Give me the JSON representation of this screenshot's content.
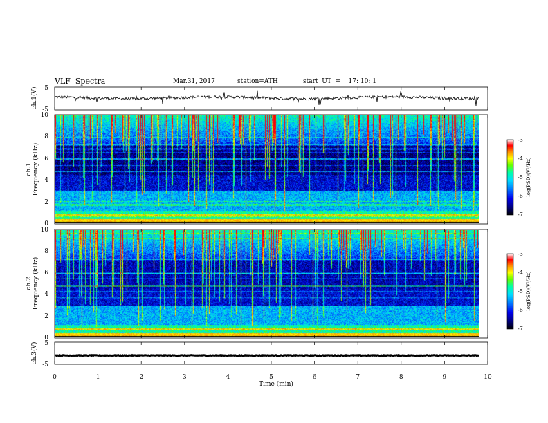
{
  "header": {
    "title": "VLF  Spectra",
    "date": "Mar.31, 2017",
    "station": "station=ATH",
    "start_ut": "start  UT  =    17: 10: 1"
  },
  "colors": {
    "colormap": [
      "#000000",
      "#000066",
      "#0000dd",
      "#0066ff",
      "#00ccff",
      "#00ffaa",
      "#55ff00",
      "#ffff00",
      "#ff8800",
      "#ff0000",
      "#ffffff"
    ]
  },
  "chart_data": [
    {
      "type": "line",
      "panel": "ch1-waveform",
      "ylabel": "ch.1(V)",
      "ylim": [
        -5,
        5
      ],
      "yticks": [
        "5",
        "-5"
      ],
      "xlim": [
        0,
        10
      ],
      "trace": "noisy baseline near 0 V with occasional spikes",
      "mean": 0.3
    },
    {
      "type": "heatmap",
      "panel": "ch1-spectrogram",
      "ylabel": "ch.1\nFrequency (kHz)",
      "ylim": [
        0,
        10
      ],
      "yticks": [
        "0",
        "2",
        "4",
        "6",
        "8",
        "10"
      ],
      "xlim": [
        0,
        9.8
      ],
      "colorbar": {
        "label": "log(PSD)(V²/Hz)",
        "range": [
          -7,
          -3
        ],
        "ticks": [
          "-3",
          "-4",
          "-5",
          "-6",
          "-7"
        ]
      }
    },
    {
      "type": "heatmap",
      "panel": "ch2-spectrogram",
      "ylabel": "ch.2\nFrequency (kHz)",
      "ylim": [
        0,
        10
      ],
      "yticks": [
        "0",
        "2",
        "4",
        "6",
        "8",
        "10"
      ],
      "xlim": [
        0,
        9.8
      ],
      "colorbar": {
        "label": "log(PSD)(V²/Hz)",
        "range": [
          -7,
          -3
        ],
        "ticks": [
          "-3",
          "-4",
          "-5",
          "-6",
          "-7"
        ]
      }
    },
    {
      "type": "line",
      "panel": "ch3-waveform",
      "ylabel": "ch.3(V)",
      "ylim": [
        -5,
        5
      ],
      "yticks": [
        "5",
        "-5"
      ],
      "xlim": [
        0,
        10
      ],
      "trace": "flat line near -1 V",
      "mean": -1
    }
  ],
  "xaxis": {
    "label": "Time  (min)",
    "range": [
      0,
      10
    ],
    "ticks": [
      "0",
      "1",
      "2",
      "3",
      "4",
      "5",
      "6",
      "7",
      "8",
      "9",
      "10"
    ]
  }
}
